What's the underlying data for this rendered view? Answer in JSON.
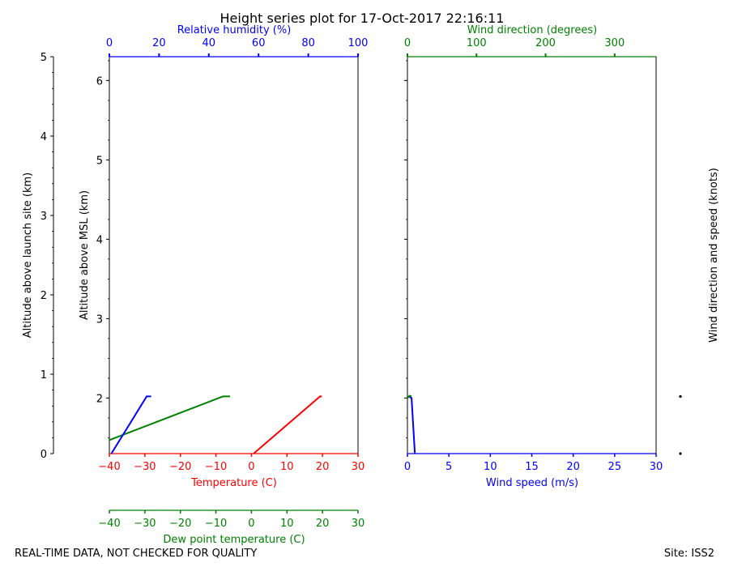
{
  "title": "Height series plot for 17-Oct-2017 22:16:11",
  "footer": {
    "left": "REAL-TIME DATA, NOT CHECKED FOR QUALITY",
    "right": "Site: ISS2"
  },
  "colors": {
    "temperature": "#ff0000",
    "dewpoint": "#008000",
    "humidity": "#0000ff",
    "wind_speed": "#0000ff",
    "wind_direction": "#008000",
    "text": "#000000"
  },
  "chart_data": [
    {
      "type": "line",
      "panel": "thermo",
      "ylabel_left": "Altitude above launch site (km)",
      "ylabel": "Altitude above MSL (km)",
      "xlabel": "Temperature (C)",
      "xlabel_top": "Relative humidity (%)",
      "xlabel_bottom2": "Dew point temperature (C)",
      "xlim": [
        -40,
        30
      ],
      "xlim_top": [
        0,
        100
      ],
      "ylim": [
        1.3,
        6.3
      ],
      "ylim_left": [
        0,
        5
      ],
      "xticks": [
        -40,
        -30,
        -20,
        -10,
        0,
        10,
        20,
        30
      ],
      "xticks_top": [
        0,
        20,
        40,
        60,
        80,
        100
      ],
      "yticks": [
        2,
        3,
        4,
        5,
        6
      ],
      "yticks_left": [
        0,
        1,
        2,
        3,
        4,
        5
      ],
      "xtick_labels": [
        "−40",
        "−30",
        "−20",
        "−10",
        "0",
        "10",
        "20",
        "30"
      ],
      "xtick_labels_top": [
        "0",
        "20",
        "40",
        "60",
        "80",
        "100"
      ],
      "ytick_labels": [
        "2",
        "3",
        "4",
        "5",
        "6"
      ],
      "ytick_labels_left": [
        "0",
        "1",
        "2",
        "3",
        "4",
        "5"
      ],
      "series": [
        {
          "name": "Temperature (C)",
          "axis": "temperature",
          "x": [
            0.6,
            19.3,
            19.8
          ],
          "y": [
            1.3,
            2.02,
            2.02
          ]
        },
        {
          "name": "Dew point temperature (C)",
          "axis": "temperature",
          "x": [
            -40,
            -8.0,
            -6.0
          ],
          "y": [
            1.47,
            2.02,
            2.02
          ]
        },
        {
          "name": "Relative humidity (%)",
          "axis": "humidity",
          "x": [
            0.8,
            15.0,
            16.8
          ],
          "y": [
            1.3,
            2.02,
            2.02
          ]
        }
      ]
    },
    {
      "type": "line",
      "panel": "wind",
      "xlabel": "Wind speed (m/s)",
      "xlabel_top": "Wind direction (degrees)",
      "ylabel_right": "Wind direction and speed (knots)",
      "xlim": [
        0,
        30
      ],
      "xlim_top": [
        0,
        360
      ],
      "ylim": [
        1.3,
        6.3
      ],
      "xticks": [
        0,
        5,
        10,
        15,
        20,
        25,
        30
      ],
      "xticks_top": [
        0,
        100,
        200,
        300
      ],
      "xtick_labels": [
        "0",
        "5",
        "10",
        "15",
        "20",
        "25",
        "30"
      ],
      "xtick_labels_top": [
        "0",
        "100",
        "200",
        "300"
      ],
      "series": [
        {
          "name": "Wind speed (m/s)",
          "axis": "speed",
          "x": [
            0.9,
            0.5,
            0.2
          ],
          "y": [
            1.3,
            2.0,
            2.02
          ]
        },
        {
          "name": "Wind direction (degrees)",
          "axis": "direction",
          "x": [
            0,
            3,
            6
          ],
          "y": [
            2.0,
            2.03,
            2.02
          ]
        }
      ],
      "barb_altitudes": [
        1.3,
        2.02
      ]
    }
  ]
}
